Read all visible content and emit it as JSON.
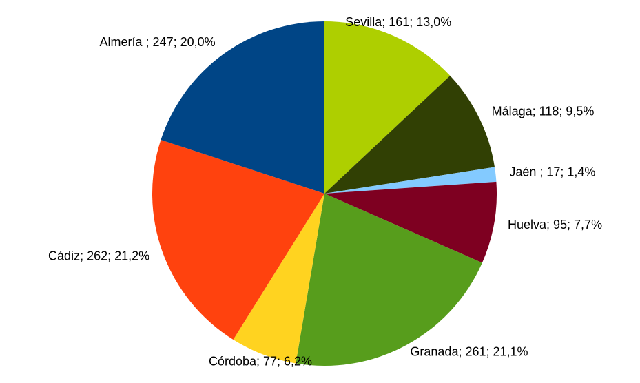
{
  "chart_data": {
    "type": "pie",
    "values": [
      161,
      118,
      17,
      95,
      261,
      77,
      262,
      247
    ],
    "value_labels": [
      "Sevilla; 161; 13,0%",
      "Málaga; 118; 9,5%",
      "Jaén ; 17; 1,4%",
      "Huelva; 95; 7,7%",
      "Granada; 261; 21,1%",
      "Córdoba; 77; 6,2%",
      "Cádiz; 262; 21,2%",
      "Almería ; 247; 20,0%"
    ],
    "colors": [
      "#aecf00",
      "#314004",
      "#83caff",
      "#7e0021",
      "#579d1c",
      "#ffd320",
      "#ff420e",
      "#004586"
    ]
  }
}
